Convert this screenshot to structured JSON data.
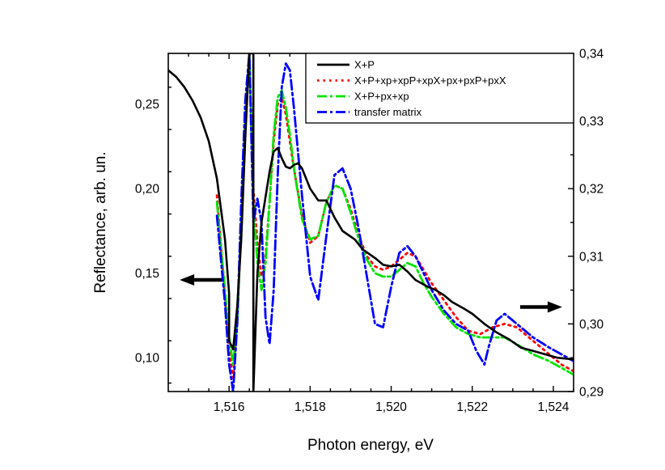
{
  "chart_data": {
    "type": "line",
    "title": "",
    "xlabel": "Photon energy, eV",
    "ylabel_left": "Reflectance, arb. un.",
    "ylabel_right": "",
    "xlim": [
      1.5145,
      1.5245
    ],
    "ylim_left": [
      0.08,
      0.28
    ],
    "ylim_right": [
      0.29,
      0.34
    ],
    "x_ticks": [
      "1,516",
      "1,518",
      "1,520",
      "1,522",
      "1,524"
    ],
    "x_tick_values": [
      1.516,
      1.518,
      1.52,
      1.522,
      1.524
    ],
    "y_left_ticks": [
      "0,10",
      "0,15",
      "0,20",
      "0,25"
    ],
    "y_left_tick_values": [
      0.1,
      0.15,
      0.2,
      0.25
    ],
    "y_right_ticks": [
      "0,29",
      "0,30",
      "0,31",
      "0,32",
      "0,33",
      "0,34"
    ],
    "y_right_tick_values": [
      0.29,
      0.3,
      0.31,
      0.32,
      0.33,
      0.34
    ],
    "grid": false,
    "legend_position": "top-right",
    "arrows": [
      {
        "direction": "left",
        "meaning": "left axis",
        "x": 1.5153,
        "y_left": 0.146
      },
      {
        "direction": "right",
        "meaning": "right axis",
        "x": 1.5237,
        "y_left": 0.13
      }
    ],
    "series": [
      {
        "name": "X+P",
        "axis": "left",
        "color": "#000000",
        "dash": "solid",
        "points": [
          [
            1.5145,
            0.27
          ],
          [
            1.5147,
            0.266
          ],
          [
            1.5149,
            0.26
          ],
          [
            1.5151,
            0.252
          ],
          [
            1.5153,
            0.242
          ],
          [
            1.5155,
            0.228
          ],
          [
            1.5157,
            0.206
          ],
          [
            1.5159,
            0.17
          ],
          [
            1.516,
            0.138
          ],
          [
            1.516,
            0.11
          ],
          [
            1.5161,
            0.105
          ],
          [
            1.5162,
            0.13
          ],
          [
            1.5163,
            0.17
          ],
          [
            1.5164,
            0.23
          ],
          [
            1.5165,
            0.28
          ],
          [
            1.5166,
            0.28
          ],
          [
            1.5166,
            0.09
          ],
          [
            1.5166,
            0.08
          ],
          [
            1.5167,
            0.15
          ],
          [
            1.5168,
            0.18
          ],
          [
            1.5169,
            0.195
          ],
          [
            1.517,
            0.21
          ],
          [
            1.5171,
            0.222
          ],
          [
            1.5172,
            0.224
          ],
          [
            1.5173,
            0.218
          ],
          [
            1.5174,
            0.213
          ],
          [
            1.5175,
            0.212
          ],
          [
            1.5176,
            0.214
          ],
          [
            1.5177,
            0.215
          ],
          [
            1.5178,
            0.212
          ],
          [
            1.518,
            0.2
          ],
          [
            1.5182,
            0.193
          ],
          [
            1.5184,
            0.193
          ],
          [
            1.5186,
            0.183
          ],
          [
            1.5188,
            0.175
          ],
          [
            1.5191,
            0.17
          ],
          [
            1.5193,
            0.164
          ],
          [
            1.5196,
            0.159
          ],
          [
            1.5198,
            0.155
          ],
          [
            1.52,
            0.154
          ],
          [
            1.5202,
            0.155
          ],
          [
            1.5204,
            0.151
          ],
          [
            1.5206,
            0.146
          ],
          [
            1.5209,
            0.142
          ],
          [
            1.5211,
            0.14
          ],
          [
            1.5213,
            0.137
          ],
          [
            1.5215,
            0.133
          ],
          [
            1.5218,
            0.129
          ],
          [
            1.522,
            0.126
          ],
          [
            1.5223,
            0.12
          ],
          [
            1.5226,
            0.115
          ],
          [
            1.5229,
            0.111
          ],
          [
            1.5232,
            0.106
          ],
          [
            1.5235,
            0.104
          ],
          [
            1.5238,
            0.102
          ],
          [
            1.5241,
            0.1
          ],
          [
            1.5245,
            0.099
          ]
        ]
      },
      {
        "name": "X+P+xp+xpP+xpX+px+pxP+pxX",
        "axis": "right",
        "color": "#ff0000",
        "dash": "dot",
        "points": [
          [
            1.5157,
            0.319
          ],
          [
            1.5159,
            0.304
          ],
          [
            1.516,
            0.296
          ],
          [
            1.5161,
            0.292
          ],
          [
            1.5162,
            0.3
          ],
          [
            1.5163,
            0.315
          ],
          [
            1.5164,
            0.33
          ],
          [
            1.5165,
            0.34
          ],
          [
            1.5166,
            0.32
          ],
          [
            1.5167,
            0.312
          ],
          [
            1.5168,
            0.307
          ],
          [
            1.5169,
            0.31
          ],
          [
            1.517,
            0.318
          ],
          [
            1.5171,
            0.327
          ],
          [
            1.5172,
            0.3325
          ],
          [
            1.5173,
            0.3335
          ],
          [
            1.5174,
            0.331
          ],
          [
            1.5175,
            0.327
          ],
          [
            1.5176,
            0.323
          ],
          [
            1.5178,
            0.316
          ],
          [
            1.518,
            0.312
          ],
          [
            1.5182,
            0.313
          ],
          [
            1.5184,
            0.318
          ],
          [
            1.5186,
            0.3205
          ],
          [
            1.5188,
            0.32
          ],
          [
            1.519,
            0.317
          ],
          [
            1.5192,
            0.313
          ],
          [
            1.5194,
            0.31
          ],
          [
            1.5196,
            0.3085
          ],
          [
            1.5198,
            0.308
          ],
          [
            1.52,
            0.3085
          ],
          [
            1.5202,
            0.3095
          ],
          [
            1.5204,
            0.3105
          ],
          [
            1.5206,
            0.31
          ],
          [
            1.5208,
            0.308
          ],
          [
            1.521,
            0.306
          ],
          [
            1.5213,
            0.3035
          ],
          [
            1.5216,
            0.301
          ],
          [
            1.5219,
            0.299
          ],
          [
            1.5222,
            0.2985
          ],
          [
            1.5225,
            0.2995
          ],
          [
            1.5228,
            0.3
          ],
          [
            1.5231,
            0.2995
          ],
          [
            1.5235,
            0.2975
          ],
          [
            1.5239,
            0.2955
          ],
          [
            1.5242,
            0.294
          ],
          [
            1.5245,
            0.293
          ]
        ]
      },
      {
        "name": "X+P+px+xp",
        "axis": "right",
        "color": "#00e400",
        "dash": "dashdot",
        "points": [
          [
            1.5157,
            0.318
          ],
          [
            1.5159,
            0.305
          ],
          [
            1.516,
            0.298
          ],
          [
            1.5161,
            0.294
          ],
          [
            1.5162,
            0.3
          ],
          [
            1.5163,
            0.315
          ],
          [
            1.5164,
            0.33
          ],
          [
            1.5165,
            0.34
          ],
          [
            1.5166,
            0.318
          ],
          [
            1.5167,
            0.309
          ],
          [
            1.5168,
            0.305
          ],
          [
            1.5169,
            0.309
          ],
          [
            1.517,
            0.318
          ],
          [
            1.5171,
            0.328
          ],
          [
            1.5172,
            0.3335
          ],
          [
            1.5173,
            0.3345
          ],
          [
            1.5174,
            0.332
          ],
          [
            1.5175,
            0.328
          ],
          [
            1.5176,
            0.323
          ],
          [
            1.5178,
            0.3155
          ],
          [
            1.518,
            0.3125
          ],
          [
            1.5182,
            0.313
          ],
          [
            1.5184,
            0.318
          ],
          [
            1.5186,
            0.3205
          ],
          [
            1.5188,
            0.32
          ],
          [
            1.519,
            0.3165
          ],
          [
            1.5192,
            0.3125
          ],
          [
            1.5194,
            0.3095
          ],
          [
            1.5196,
            0.3075
          ],
          [
            1.5198,
            0.307
          ],
          [
            1.52,
            0.307
          ],
          [
            1.5202,
            0.308
          ],
          [
            1.5204,
            0.309
          ],
          [
            1.5206,
            0.3085
          ],
          [
            1.5208,
            0.306
          ],
          [
            1.521,
            0.304
          ],
          [
            1.5213,
            0.3015
          ],
          [
            1.5216,
            0.2995
          ],
          [
            1.5219,
            0.2985
          ],
          [
            1.5222,
            0.298
          ],
          [
            1.5225,
            0.298
          ],
          [
            1.5228,
            0.298
          ],
          [
            1.5231,
            0.297
          ],
          [
            1.5235,
            0.2955
          ],
          [
            1.5239,
            0.2945
          ],
          [
            1.5242,
            0.2935
          ],
          [
            1.5245,
            0.2925
          ]
        ]
      },
      {
        "name": "transfer matrix",
        "axis": "right",
        "color": "#0000ff",
        "dash": "dashdot",
        "points": [
          [
            1.5157,
            0.316
          ],
          [
            1.5159,
            0.303
          ],
          [
            1.516,
            0.294
          ],
          [
            1.5161,
            0.29
          ],
          [
            1.5162,
            0.3
          ],
          [
            1.5163,
            0.318
          ],
          [
            1.5164,
            0.333
          ],
          [
            1.5165,
            0.34
          ],
          [
            1.5166,
            0.315
          ],
          [
            1.5167,
            0.3185
          ],
          [
            1.5168,
            0.315
          ],
          [
            1.5169,
            0.301
          ],
          [
            1.517,
            0.297
          ],
          [
            1.5171,
            0.305
          ],
          [
            1.5172,
            0.322
          ],
          [
            1.5173,
            0.335
          ],
          [
            1.5174,
            0.3385
          ],
          [
            1.5175,
            0.3375
          ],
          [
            1.5176,
            0.332
          ],
          [
            1.5178,
            0.319
          ],
          [
            1.518,
            0.307
          ],
          [
            1.5182,
            0.3035
          ],
          [
            1.5184,
            0.313
          ],
          [
            1.5186,
            0.322
          ],
          [
            1.5188,
            0.323
          ],
          [
            1.519,
            0.32
          ],
          [
            1.5192,
            0.314
          ],
          [
            1.5194,
            0.307
          ],
          [
            1.5196,
            0.3
          ],
          [
            1.5198,
            0.2995
          ],
          [
            1.52,
            0.3055
          ],
          [
            1.5202,
            0.3105
          ],
          [
            1.5204,
            0.3115
          ],
          [
            1.5206,
            0.31
          ],
          [
            1.5208,
            0.3075
          ],
          [
            1.521,
            0.305
          ],
          [
            1.5213,
            0.302
          ],
          [
            1.5216,
            0.3
          ],
          [
            1.5219,
            0.299
          ],
          [
            1.5221,
            0.296
          ],
          [
            1.5223,
            0.294
          ],
          [
            1.5224,
            0.2965
          ],
          [
            1.5226,
            0.3005
          ],
          [
            1.5228,
            0.3015
          ],
          [
            1.5231,
            0.3
          ],
          [
            1.5235,
            0.298
          ],
          [
            1.5239,
            0.2965
          ],
          [
            1.5242,
            0.2955
          ],
          [
            1.5245,
            0.2945
          ]
        ]
      }
    ]
  }
}
